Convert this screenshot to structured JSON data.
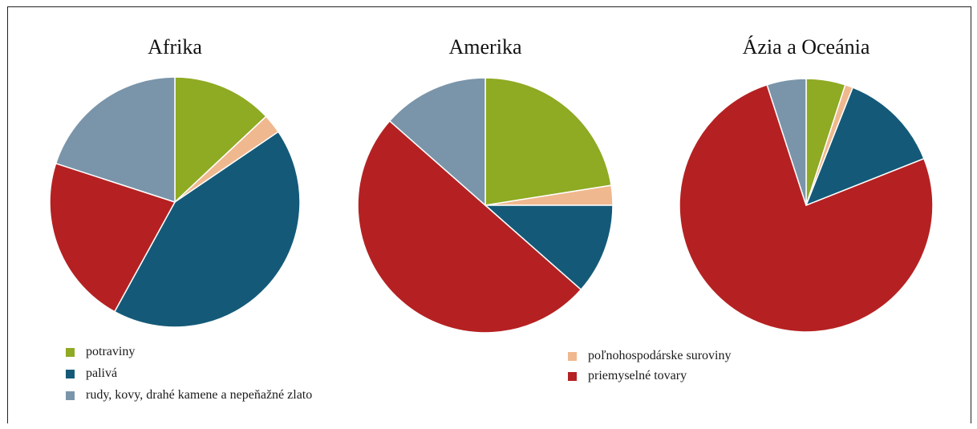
{
  "chart_data": [
    {
      "type": "pie",
      "title": "Afrika",
      "categories": [
        "potraviny",
        "poľnohospodárske suroviny",
        "palivá",
        "priemyselné tovary",
        "rudy, kovy, drahé kamene a nepeňažné zlato"
      ],
      "values": [
        13,
        2.5,
        42.5,
        22,
        20
      ]
    },
    {
      "type": "pie",
      "title": "Amerika",
      "categories": [
        "potraviny",
        "poľnohospodárske suroviny",
        "palivá",
        "priemyselné tovary",
        "rudy, kovy, drahé kamene a nepeňažné zlato"
      ],
      "values": [
        22.5,
        2.5,
        11.5,
        50,
        13.5
      ]
    },
    {
      "type": "pie",
      "title": "Ázia a Oceánia",
      "categories": [
        "potraviny",
        "poľnohospodárske suroviny",
        "palivá",
        "priemyselné tovary",
        "rudy, kovy, drahé kamene a nepeňažné zlato"
      ],
      "values": [
        5,
        1,
        13,
        76,
        5
      ]
    }
  ],
  "legend": {
    "items": [
      {
        "label": "potraviny",
        "color": "#8faa23"
      },
      {
        "label": "palivá",
        "color": "#145a78"
      },
      {
        "label": "rudy, kovy, drahé kamene a nepeňažné zlato",
        "color": "#7a95aa"
      },
      {
        "label": "poľnohospodárske suroviny",
        "color": "#f0b88e"
      },
      {
        "label": "priemyselné tovary",
        "color": "#b52122"
      }
    ]
  },
  "colors": {
    "potraviny": "#8faa23",
    "poľnohospodárske suroviny": "#f0b88e",
    "palivá": "#145a78",
    "priemyselné tovary": "#b52122",
    "rudy, kovy, drahé kamene a nepeňažné zlato": "#7a95aa"
  }
}
